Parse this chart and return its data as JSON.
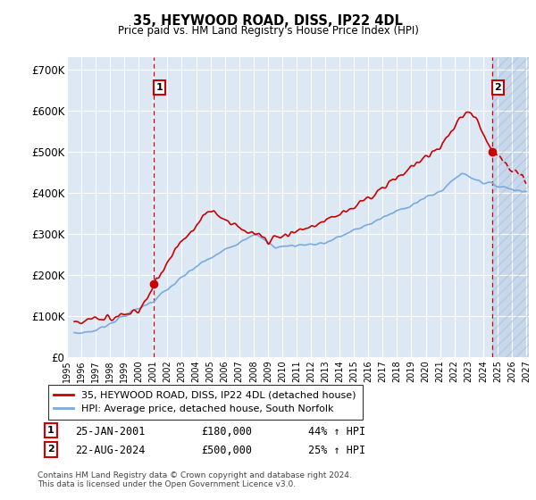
{
  "title1": "35, HEYWOOD ROAD, DISS, IP22 4DL",
  "title2": "Price paid vs. HM Land Registry's House Price Index (HPI)",
  "ylabel_values": [
    0,
    100000,
    200000,
    300000,
    400000,
    500000,
    600000,
    700000
  ],
  "ylabel_labels": [
    "£0",
    "£100K",
    "£200K",
    "£300K",
    "£400K",
    "£500K",
    "£600K",
    "£700K"
  ],
  "x_start": 1995.4,
  "x_end": 2027.2,
  "x_ticks": [
    1995,
    1996,
    1997,
    1998,
    1999,
    2000,
    2001,
    2002,
    2003,
    2004,
    2005,
    2006,
    2007,
    2008,
    2009,
    2010,
    2011,
    2012,
    2013,
    2014,
    2015,
    2016,
    2017,
    2018,
    2019,
    2020,
    2021,
    2022,
    2023,
    2024,
    2025,
    2026,
    2027
  ],
  "hpi_color": "#7aaadd",
  "price_color": "#cc0000",
  "background_color": "#dde8f5",
  "grid_color": "#ffffff",
  "marker1_year": 2001.07,
  "marker1_price": 180000,
  "marker2_year": 2024.64,
  "marker2_price": 500000,
  "legend_label1": "35, HEYWOOD ROAD, DISS, IP22 4DL (detached house)",
  "legend_label2": "HPI: Average price, detached house, South Norfolk",
  "info1_num": "1",
  "info1_date": "25-JAN-2001",
  "info1_price": "£180,000",
  "info1_hpi": "44% ↑ HPI",
  "info2_num": "2",
  "info2_date": "22-AUG-2024",
  "info2_price": "£500,000",
  "info2_hpi": "25% ↑ HPI",
  "footer": "Contains HM Land Registry data © Crown copyright and database right 2024.\nThis data is licensed under the Open Government Licence v3.0.",
  "future_start": 2024.64,
  "ylim": [
    0,
    730000
  ]
}
